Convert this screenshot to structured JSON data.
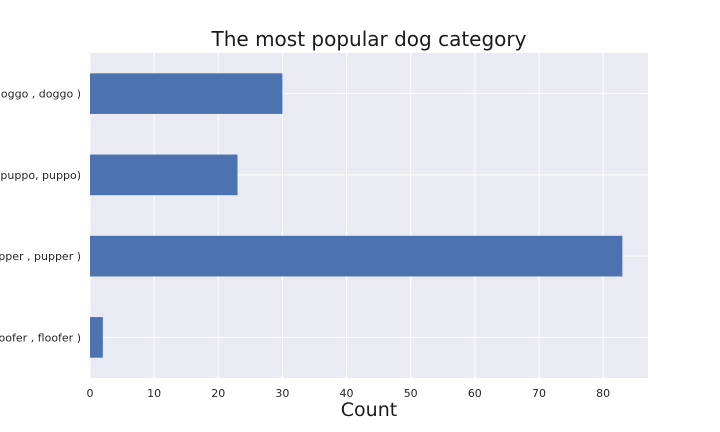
{
  "chart_data": {
    "type": "bar",
    "orientation": "horizontal",
    "title": "The most popular dog category",
    "xlabel": "Count",
    "ylabel": "",
    "categories": [
      "(doggo , doggo )",
      "( puppo,  puppo)",
      "( pupper ,  pupper )",
      "( floofer ,  floofer )"
    ],
    "values": [
      30,
      23,
      83,
      2
    ],
    "xlim": [
      0,
      87
    ],
    "xticks": [
      0,
      10,
      20,
      30,
      40,
      50,
      60,
      70,
      80
    ],
    "grid": true,
    "legend": "none",
    "colors": {
      "bar": "#4c72b0",
      "plot_background": "#eaeaf2",
      "grid": "#ffffff"
    }
  }
}
